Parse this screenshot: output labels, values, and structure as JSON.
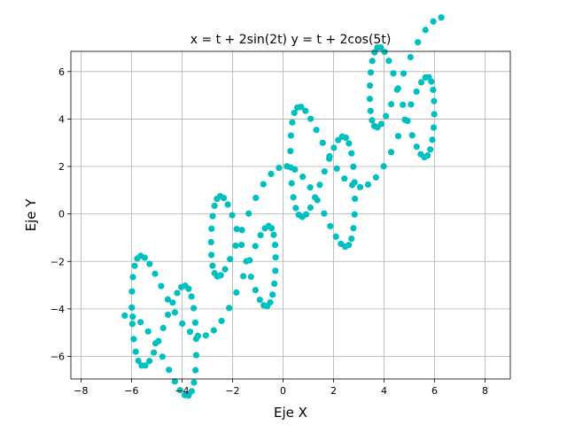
{
  "chart_data": {
    "type": "scatter",
    "title": "x = t + 2sin(2t) y = t + 2cos(5t)",
    "xlabel": "Eje X",
    "ylabel": "Eje Y",
    "xlim": [
      -8.4,
      9.0
    ],
    "ylim": [
      -6.95,
      6.85
    ],
    "xticks": [
      -8,
      -6,
      -4,
      -2,
      0,
      2,
      4,
      6,
      8
    ],
    "yticks": [
      -6,
      -4,
      -2,
      0,
      2,
      4,
      6
    ],
    "grid": true,
    "marker_color": "#00bfbf",
    "series": [
      {
        "equation_x": "t + 2sin(2t)",
        "equation_y": "t + 2cos(5t)",
        "t_range": [
          -6.28,
          6.28
        ],
        "num_points": 200,
        "points_note": "generated from the printed equations"
      }
    ]
  }
}
